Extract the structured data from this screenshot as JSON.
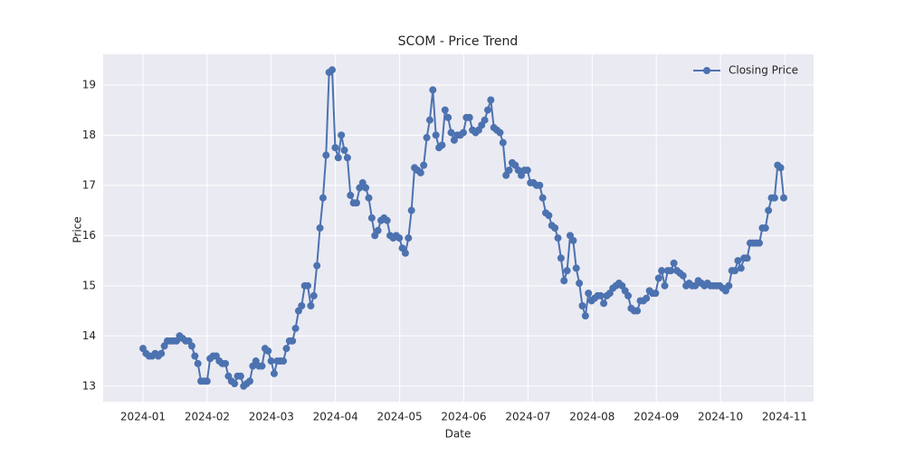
{
  "chart_data": {
    "type": "line",
    "title": "SCOM - Price Trend",
    "x_label": "Date",
    "y_label": "Price",
    "xticks": [
      "2024-01",
      "2024-02",
      "2024-03",
      "2024-04",
      "2024-05",
      "2024-06",
      "2024-07",
      "2024-08",
      "2024-09",
      "2024-10",
      "2024-11"
    ],
    "ylim": [
      12.69,
      19.61
    ],
    "yticks": [
      13,
      14,
      15,
      16,
      17,
      18,
      19
    ],
    "grid": true,
    "legend": "upper right",
    "series": [
      {
        "name": "Closing Price",
        "color": "#4c72b0",
        "values": [
          13.75,
          13.65,
          13.6,
          13.6,
          13.65,
          13.6,
          13.65,
          13.8,
          13.9,
          13.9,
          13.9,
          13.9,
          14.0,
          13.95,
          13.9,
          13.9,
          13.8,
          13.6,
          13.45,
          13.1,
          13.1,
          13.1,
          13.55,
          13.6,
          13.6,
          13.5,
          13.45,
          13.45,
          13.2,
          13.1,
          13.05,
          13.2,
          13.2,
          13.0,
          13.05,
          13.1,
          13.4,
          13.5,
          13.4,
          13.4,
          13.75,
          13.7,
          13.5,
          13.25,
          13.5,
          13.5,
          13.5,
          13.75,
          13.9,
          13.9,
          14.15,
          14.5,
          14.6,
          15.0,
          15.0,
          14.6,
          14.8,
          15.4,
          16.15,
          16.75,
          17.6,
          19.25,
          19.3,
          17.75,
          17.55,
          18.0,
          17.7,
          17.55,
          16.8,
          16.65,
          16.65,
          16.95,
          17.05,
          16.95,
          16.75,
          16.35,
          16.0,
          16.1,
          16.3,
          16.35,
          16.3,
          16.0,
          15.95,
          16.0,
          15.95,
          15.75,
          15.65,
          15.95,
          16.5,
          17.35,
          17.3,
          17.25,
          17.4,
          17.95,
          18.3,
          18.9,
          18.0,
          17.75,
          17.8,
          18.5,
          18.35,
          18.05,
          17.9,
          18.0,
          18.0,
          18.05,
          18.35,
          18.35,
          18.1,
          18.05,
          18.1,
          18.2,
          18.3,
          18.5,
          18.7,
          18.15,
          18.1,
          18.05,
          17.85,
          17.2,
          17.3,
          17.45,
          17.4,
          17.3,
          17.2,
          17.3,
          17.3,
          17.05,
          17.05,
          17.0,
          17.0,
          16.75,
          16.45,
          16.4,
          16.2,
          16.15,
          15.95,
          15.55,
          15.1,
          15.3,
          16.0,
          15.9,
          15.35,
          15.05,
          14.6,
          14.4,
          14.85,
          14.7,
          14.75,
          14.8,
          14.8,
          14.65,
          14.8,
          14.85,
          14.95,
          15.0,
          15.05,
          15.0,
          14.9,
          14.8,
          14.55,
          14.5,
          14.5,
          14.7,
          14.7,
          14.75,
          14.9,
          14.85,
          14.85,
          15.15,
          15.3,
          15.0,
          15.3,
          15.3,
          15.45,
          15.3,
          15.25,
          15.2,
          15.0,
          15.05,
          15.0,
          15.0,
          15.1,
          15.05,
          15.0,
          15.05,
          15.0,
          15.0,
          15.0,
          15.0,
          14.95,
          14.9,
          15.0,
          15.3,
          15.3,
          15.5,
          15.35,
          15.55,
          15.55,
          15.85,
          15.85,
          15.85,
          15.85,
          16.15,
          16.15,
          16.5,
          16.75,
          16.75,
          17.4,
          17.35,
          16.75
        ]
      }
    ]
  }
}
